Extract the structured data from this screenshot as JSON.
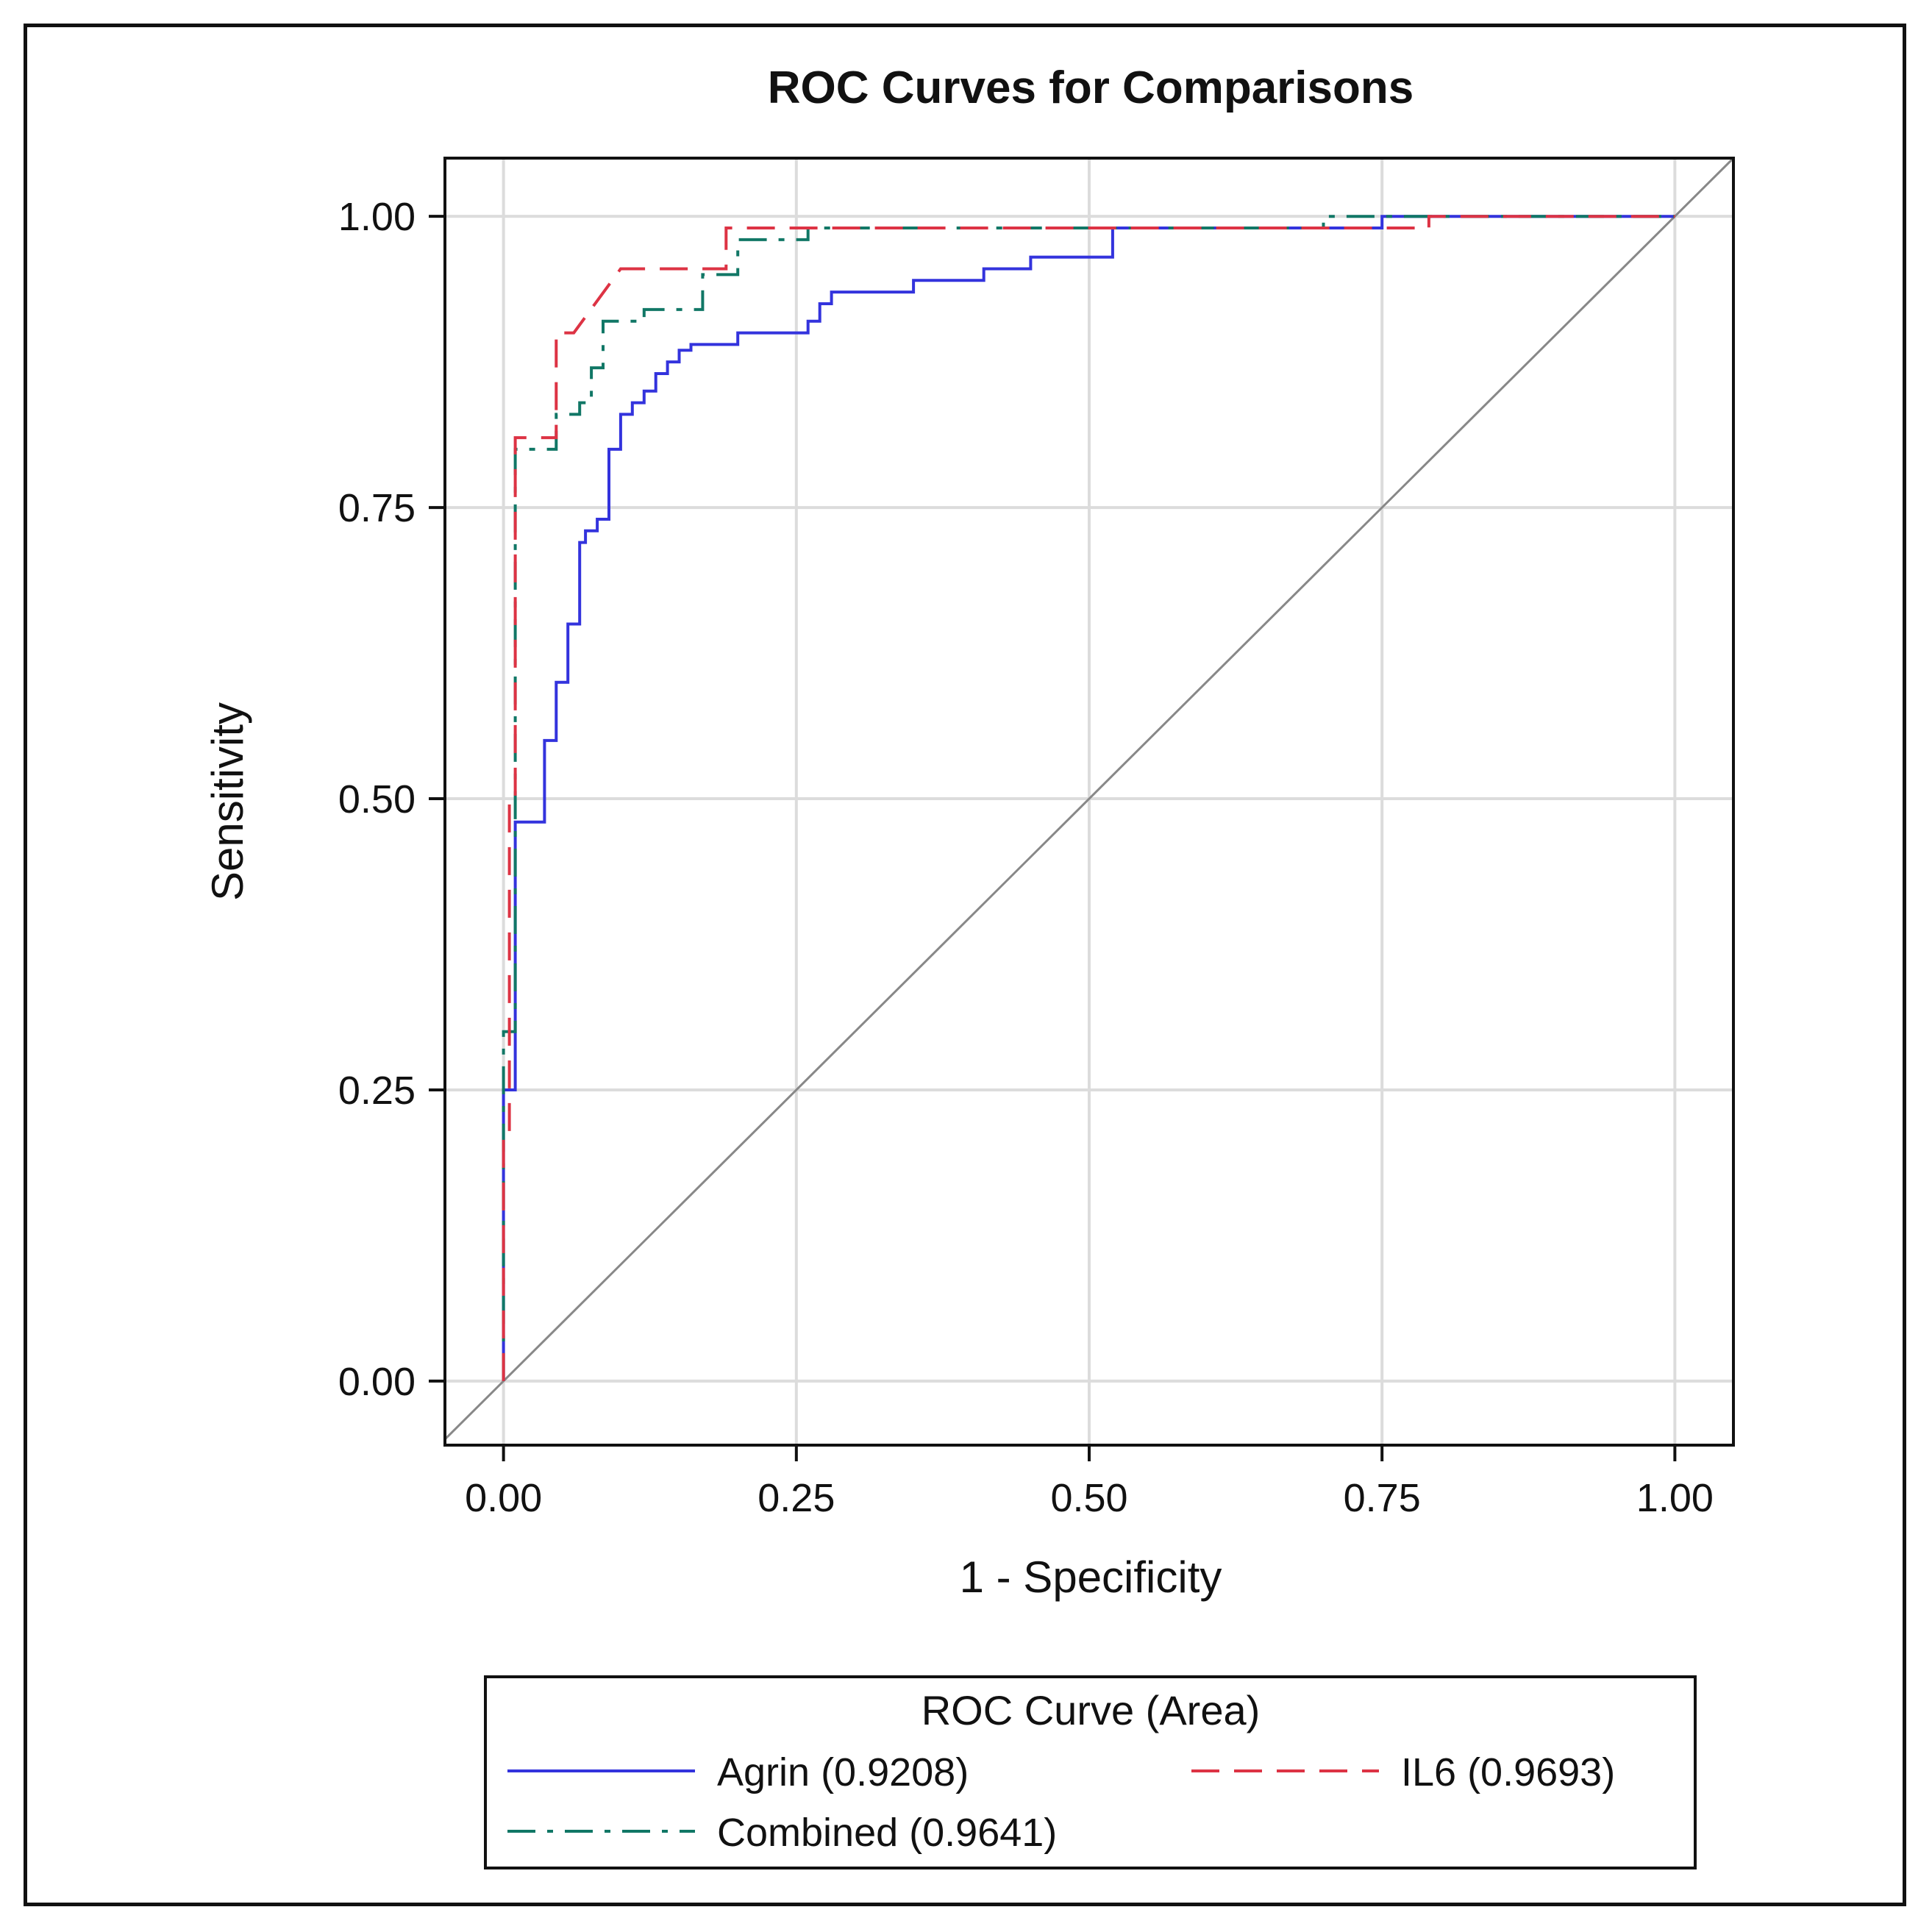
{
  "chart_data": {
    "type": "line",
    "title": "ROC Curves for Comparisons",
    "xlabel": "1 - Specificity",
    "ylabel": "Sensitivity",
    "xlim": [
      -0.05,
      1.05
    ],
    "ylim": [
      -0.055,
      1.05
    ],
    "xticks": [
      0,
      0.25,
      0.5,
      0.75,
      1
    ],
    "yticks": [
      0,
      0.25,
      0.5,
      0.75,
      1
    ],
    "xtick_labels": [
      "0.00",
      "0.25",
      "0.50",
      "0.75",
      "1.00"
    ],
    "ytick_labels": [
      "0.00",
      "0.25",
      "0.50",
      "0.75",
      "1.00"
    ],
    "grid": true,
    "diagonal_reference": true,
    "legend": {
      "title": "ROC Curve (Area)",
      "placement": "bottom",
      "entries": [
        {
          "series": 0,
          "name": "Agrin",
          "area": "(0.9208)"
        },
        {
          "series": 2,
          "name": "IL6",
          "area": "(0.9693)"
        },
        {
          "series": 1,
          "name": "Combined",
          "area": "(0.9641)"
        }
      ]
    },
    "series": [
      {
        "name": "Agrin",
        "color": "#3333dd",
        "style": "solid",
        "x": [
          0.0,
          0.0,
          0.01,
          0.01,
          0.013,
          0.013,
          0.035,
          0.035,
          0.045,
          0.045,
          0.055,
          0.055,
          0.065,
          0.065,
          0.07,
          0.07,
          0.08,
          0.08,
          0.09,
          0.09,
          0.1,
          0.1,
          0.11,
          0.11,
          0.12,
          0.12,
          0.13,
          0.13,
          0.14,
          0.14,
          0.15,
          0.15,
          0.16,
          0.16,
          0.17,
          0.17,
          0.2,
          0.2,
          0.26,
          0.26,
          0.27,
          0.27,
          0.28,
          0.28,
          0.35,
          0.35,
          0.41,
          0.41,
          0.45,
          0.45,
          0.52,
          0.52,
          0.75,
          0.75,
          1.0
        ],
        "y": [
          0.0,
          0.25,
          0.25,
          0.48,
          0.48,
          0.48,
          0.48,
          0.55,
          0.55,
          0.6,
          0.6,
          0.65,
          0.65,
          0.72,
          0.72,
          0.73,
          0.73,
          0.74,
          0.74,
          0.8,
          0.8,
          0.83,
          0.83,
          0.84,
          0.84,
          0.85,
          0.85,
          0.865,
          0.865,
          0.875,
          0.875,
          0.885,
          0.885,
          0.89,
          0.89,
          0.89,
          0.89,
          0.9,
          0.9,
          0.91,
          0.91,
          0.925,
          0.925,
          0.935,
          0.935,
          0.945,
          0.945,
          0.955,
          0.955,
          0.965,
          0.965,
          0.99,
          0.99,
          1.0,
          1.0
        ]
      },
      {
        "name": "Combined",
        "color": "#117766",
        "style": "dashdot",
        "x": [
          0.0,
          0.0,
          0.01,
          0.01,
          0.02,
          0.02,
          0.045,
          0.045,
          0.065,
          0.065,
          0.075,
          0.075,
          0.085,
          0.085,
          0.12,
          0.12,
          0.17,
          0.17,
          0.2,
          0.2,
          0.26,
          0.26,
          0.7,
          0.7,
          1.0
        ],
        "y": [
          0.0,
          0.3,
          0.3,
          0.8,
          0.8,
          0.8,
          0.8,
          0.83,
          0.83,
          0.84,
          0.84,
          0.87,
          0.87,
          0.91,
          0.91,
          0.92,
          0.92,
          0.95,
          0.95,
          0.98,
          0.98,
          0.99,
          0.99,
          1.0,
          1.0
        ]
      },
      {
        "name": "IL6",
        "color": "#dd3344",
        "style": "dashed",
        "x": [
          0.0,
          0.0,
          0.005,
          0.005,
          0.01,
          0.01,
          0.015,
          0.015,
          0.045,
          0.045,
          0.06,
          0.06,
          0.1,
          0.1,
          0.19,
          0.19,
          0.76,
          0.76,
          0.79,
          0.79,
          1.0
        ],
        "y": [
          0.0,
          0.21,
          0.21,
          0.5,
          0.5,
          0.81,
          0.81,
          0.81,
          0.81,
          0.9,
          0.9,
          0.9,
          0.955,
          0.955,
          0.955,
          0.99,
          0.99,
          0.99,
          0.99,
          1.0,
          1.0
        ]
      }
    ]
  }
}
